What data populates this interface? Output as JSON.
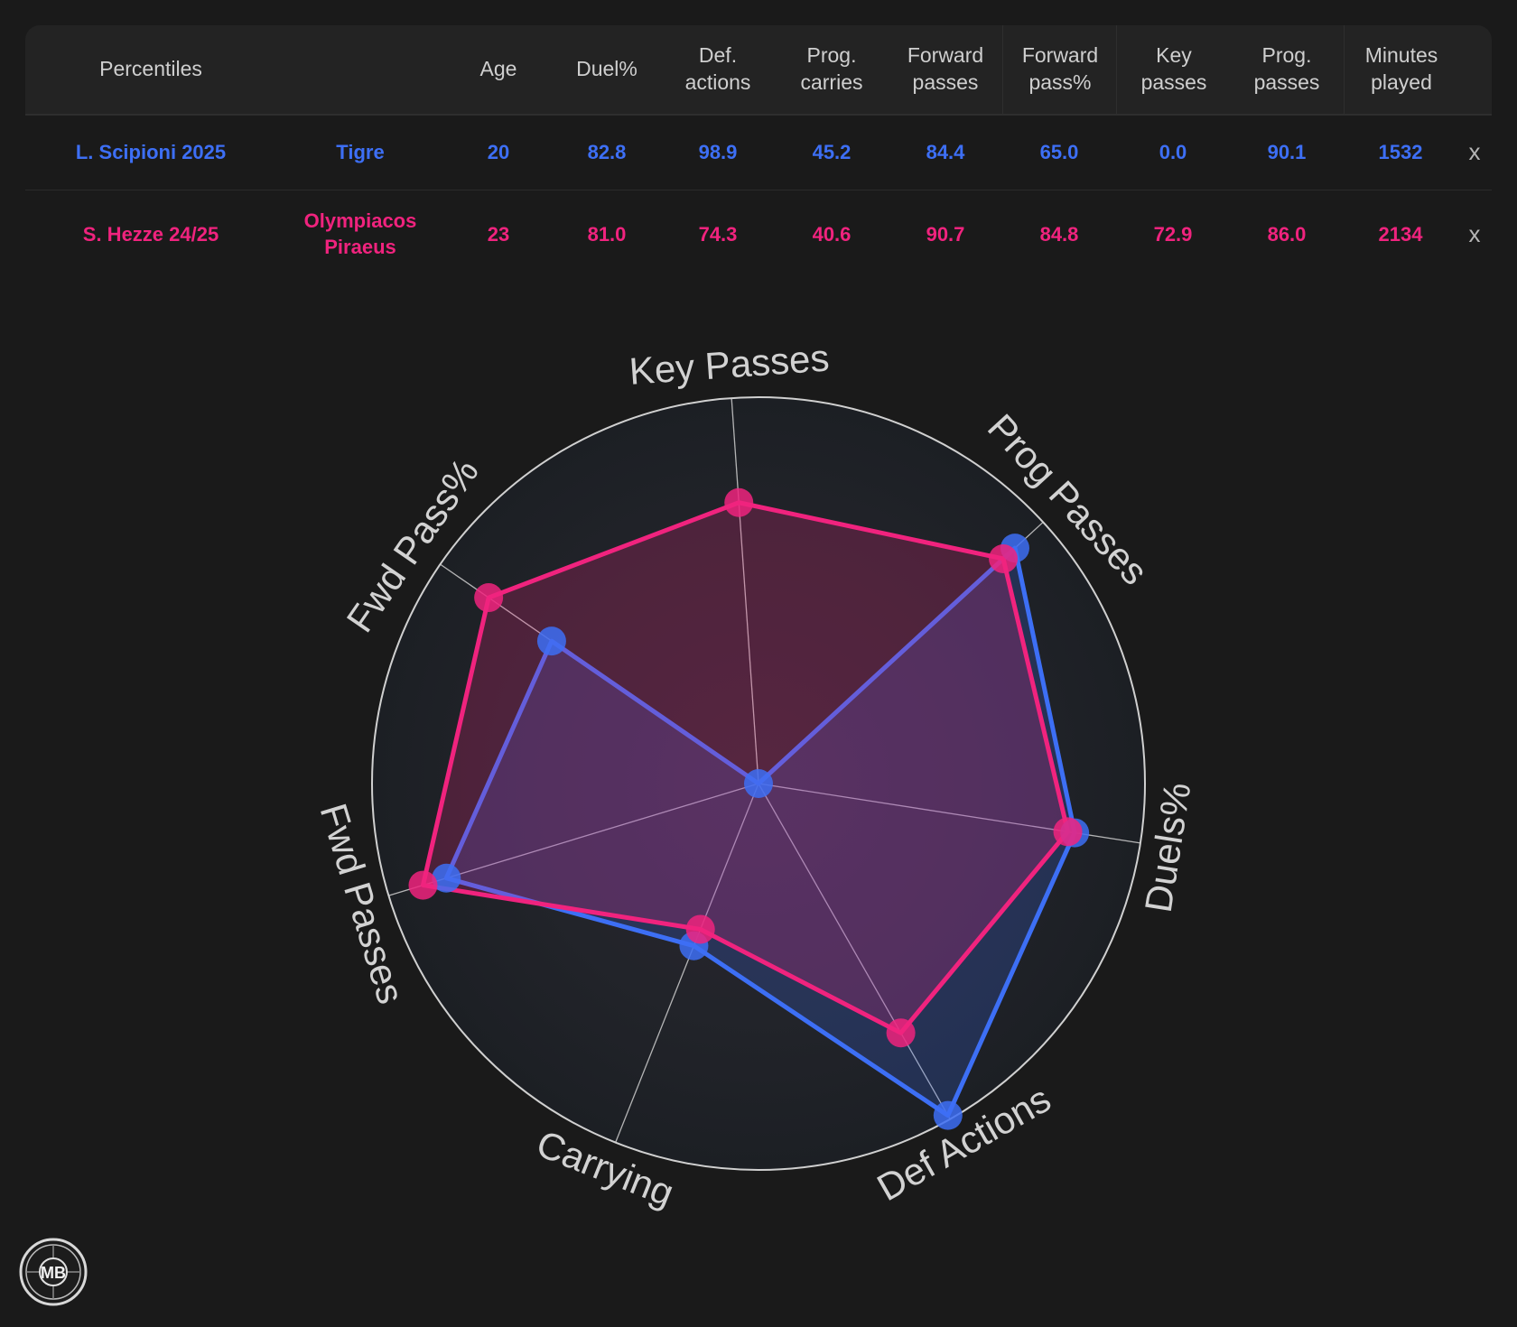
{
  "table": {
    "header": {
      "percentiles": "Percentiles",
      "age": "Age",
      "duel": "Duel%",
      "def_actions_1": "Def.",
      "def_actions_2": "actions",
      "prog_carries_1": "Prog.",
      "prog_carries_2": "carries",
      "forward_passes_1": "Forward",
      "forward_passes_2": "passes",
      "forward_pass_pct_1": "Forward",
      "forward_pass_pct_2": "pass%",
      "key_passes_1": "Key",
      "key_passes_2": "passes",
      "prog_passes_1": "Prog.",
      "prog_passes_2": "passes",
      "minutes_1": "Minutes",
      "minutes_2": "played"
    },
    "rows": [
      {
        "player": "L. Scipioni 2025",
        "team": "Tigre",
        "age": "20",
        "duel": "82.8",
        "def_actions": "98.9",
        "prog_carries": "45.2",
        "forward_passes": "84.4",
        "forward_pass_pct": "65.0",
        "key_passes": "0.0",
        "prog_passes": "90.1",
        "minutes": "1532",
        "remove": "x"
      },
      {
        "player": "S. Hezze 24/25",
        "team_1": "Olympiacos",
        "team_2": "Piraeus",
        "age": "23",
        "duel": "81.0",
        "def_actions": "74.3",
        "prog_carries": "40.6",
        "forward_passes": "90.7",
        "forward_pass_pct": "84.8",
        "key_passes": "72.9",
        "prog_passes": "86.0",
        "minutes": "2134",
        "remove": "x"
      }
    ]
  },
  "chart_data": {
    "type": "radar",
    "categories": [
      "Key Passes",
      "Prog Passes",
      "Duels%",
      "Def Actions",
      "Carrying",
      "Fwd Passes",
      "Fwd Pass%"
    ],
    "rlim": [
      0,
      100
    ],
    "series": [
      {
        "name": "L. Scipioni 2025",
        "color": "#3d6ff5",
        "values": [
          0.0,
          90.1,
          82.8,
          98.9,
          45.2,
          84.4,
          65.0
        ]
      },
      {
        "name": "S. Hezze 24/25",
        "color": "#f0237e",
        "values": [
          72.9,
          86.0,
          81.0,
          74.3,
          40.6,
          90.7,
          84.8
        ]
      }
    ]
  },
  "logo": {
    "text": "MB"
  }
}
